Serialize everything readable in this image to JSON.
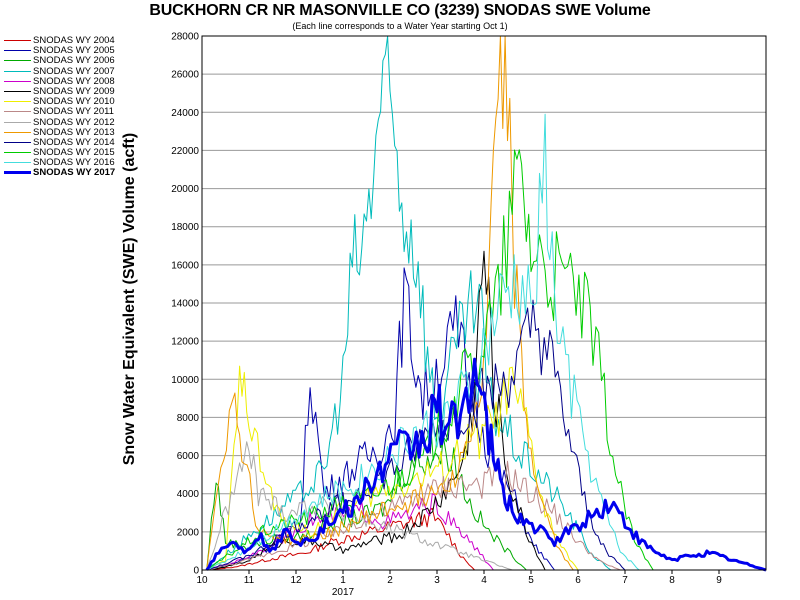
{
  "chart_data": {
    "type": "line",
    "title": "BUCKHORN CR NR MASONVILLE CO (3239) SNODAS SWE Volume",
    "subtitle": "(Each line corresponds to a Water Year starting Oct 1)",
    "ylabel": "Snow Water Equivalent (SWE) Volume (acft)",
    "xlabel": "",
    "x_tick_labels": [
      "10",
      "11",
      "12",
      "1",
      "2",
      "3",
      "4",
      "5",
      "6",
      "7",
      "8",
      "9"
    ],
    "x_year_label": "2017",
    "ylim": [
      0,
      28000
    ],
    "y_ticks": [
      0,
      2000,
      4000,
      6000,
      8000,
      10000,
      12000,
      14000,
      16000,
      18000,
      20000,
      22000,
      24000,
      26000,
      28000
    ],
    "grid": "horizontal",
    "legend_position": "top-left",
    "series": [
      {
        "name": "SNODAS WY 2004",
        "color": "#cc0000",
        "width": 1,
        "points": [
          [
            0.2,
            0
          ],
          [
            0.8,
            200
          ],
          [
            1.5,
            600
          ],
          [
            2.2,
            900
          ],
          [
            2.8,
            1500
          ],
          [
            3.3,
            1800
          ],
          [
            3.9,
            2200
          ],
          [
            4.4,
            2500
          ],
          [
            4.9,
            2800
          ],
          [
            5.2,
            2000
          ],
          [
            5.5,
            800
          ],
          [
            5.8,
            0
          ]
        ]
      },
      {
        "name": "SNODAS WY 2005",
        "color": "#0000aa",
        "width": 1,
        "points": [
          [
            0.1,
            0
          ],
          [
            0.6,
            300
          ],
          [
            1.2,
            800
          ],
          [
            2.1,
            2500
          ],
          [
            2.3,
            10500
          ],
          [
            2.6,
            4000
          ],
          [
            3.3,
            5500
          ],
          [
            3.8,
            6500
          ],
          [
            4.1,
            8000
          ],
          [
            4.3,
            14500
          ],
          [
            4.5,
            11500
          ],
          [
            4.7,
            9000
          ],
          [
            5.1,
            11000
          ],
          [
            5.4,
            12500
          ],
          [
            5.8,
            9000
          ],
          [
            6.2,
            5500
          ],
          [
            6.6,
            4000
          ],
          [
            7.0,
            1500
          ],
          [
            7.5,
            0
          ]
        ]
      },
      {
        "name": "SNODAS WY 2006",
        "color": "#00aa00",
        "width": 1,
        "points": [
          [
            0.1,
            0
          ],
          [
            0.3,
            5000
          ],
          [
            0.5,
            1500
          ],
          [
            1.0,
            1200
          ],
          [
            1.6,
            1700
          ],
          [
            2.2,
            1800
          ],
          [
            2.8,
            2500
          ],
          [
            3.4,
            2800
          ],
          [
            3.9,
            3300
          ],
          [
            4.3,
            5200
          ],
          [
            4.8,
            6000
          ],
          [
            5.3,
            6200
          ],
          [
            5.7,
            3500
          ],
          [
            6.1,
            2000
          ],
          [
            6.5,
            1000
          ],
          [
            6.9,
            0
          ]
        ]
      },
      {
        "name": "SNODAS WY 2007",
        "color": "#00bbbb",
        "width": 1,
        "points": [
          [
            0.1,
            0
          ],
          [
            0.5,
            800
          ],
          [
            1.1,
            2000
          ],
          [
            1.6,
            3000
          ],
          [
            2.1,
            4000
          ],
          [
            2.6,
            5200
          ],
          [
            3.0,
            10000
          ],
          [
            3.2,
            16000
          ],
          [
            3.4,
            16500
          ],
          [
            3.6,
            20000
          ],
          [
            3.8,
            24800
          ],
          [
            4.0,
            24000
          ],
          [
            4.2,
            20000
          ],
          [
            4.4,
            18000
          ],
          [
            4.6,
            16500
          ],
          [
            4.8,
            11000
          ],
          [
            5.0,
            8000
          ],
          [
            5.3,
            10500
          ],
          [
            5.6,
            13000
          ],
          [
            5.9,
            14000
          ],
          [
            6.1,
            9000
          ],
          [
            6.3,
            8000
          ],
          [
            6.5,
            7200
          ],
          [
            6.8,
            6000
          ],
          [
            7.1,
            5200
          ],
          [
            7.5,
            4000
          ],
          [
            7.9,
            2500
          ],
          [
            8.3,
            800
          ],
          [
            8.7,
            0
          ]
        ]
      },
      {
        "name": "SNODAS WY 2008",
        "color": "#cc00cc",
        "width": 1,
        "points": [
          [
            0.1,
            0
          ],
          [
            0.8,
            500
          ],
          [
            1.6,
            1500
          ],
          [
            2.3,
            2600
          ],
          [
            2.9,
            2800
          ],
          [
            3.4,
            3100
          ],
          [
            3.9,
            2500
          ],
          [
            4.4,
            2900
          ],
          [
            4.9,
            3500
          ],
          [
            5.3,
            2500
          ],
          [
            5.8,
            1200
          ],
          [
            6.2,
            0
          ]
        ]
      },
      {
        "name": "SNODAS WY 2009",
        "color": "#000000",
        "width": 1,
        "points": [
          [
            0.2,
            0
          ],
          [
            0.9,
            400
          ],
          [
            1.7,
            1500
          ],
          [
            2.4,
            1500
          ],
          [
            3.0,
            1000
          ],
          [
            3.6,
            1500
          ],
          [
            4.2,
            1800
          ],
          [
            4.8,
            3000
          ],
          [
            5.3,
            4500
          ],
          [
            5.6,
            6000
          ],
          [
            5.8,
            9500
          ],
          [
            6.0,
            17000
          ],
          [
            6.2,
            10000
          ],
          [
            6.5,
            5000
          ],
          [
            6.9,
            2000
          ],
          [
            7.3,
            0
          ]
        ]
      },
      {
        "name": "SNODAS WY 2010",
        "color": "#eeee00",
        "width": 1,
        "points": [
          [
            0.1,
            0
          ],
          [
            0.5,
            500
          ],
          [
            0.8,
            9500
          ],
          [
            0.9,
            12000
          ],
          [
            1.0,
            8000
          ],
          [
            1.3,
            5000
          ],
          [
            1.7,
            2500
          ],
          [
            2.3,
            2000
          ],
          [
            3.1,
            3300
          ],
          [
            3.7,
            4000
          ],
          [
            4.3,
            4500
          ],
          [
            4.8,
            5000
          ],
          [
            5.2,
            5500
          ],
          [
            5.6,
            6500
          ],
          [
            5.9,
            7000
          ],
          [
            6.2,
            7800
          ],
          [
            6.6,
            9500
          ],
          [
            6.9,
            7500
          ],
          [
            7.3,
            3000
          ],
          [
            7.7,
            1000
          ],
          [
            8.0,
            0
          ]
        ]
      },
      {
        "name": "SNODAS WY 2011",
        "color": "#bb8888",
        "width": 1,
        "points": [
          [
            0.1,
            0
          ],
          [
            0.8,
            400
          ],
          [
            1.6,
            1000
          ],
          [
            2.3,
            1500
          ],
          [
            2.9,
            2000
          ],
          [
            3.5,
            2800
          ],
          [
            4.1,
            3300
          ],
          [
            4.7,
            4000
          ],
          [
            5.3,
            4500
          ],
          [
            5.9,
            4500
          ],
          [
            6.5,
            5000
          ],
          [
            7.0,
            4000
          ],
          [
            7.5,
            3000
          ],
          [
            8.0,
            1500
          ],
          [
            8.5,
            400
          ],
          [
            8.9,
            0
          ]
        ]
      },
      {
        "name": "SNODAS WY 2012",
        "color": "#aaaaaa",
        "width": 1,
        "points": [
          [
            0.1,
            0
          ],
          [
            0.5,
            3000
          ],
          [
            0.8,
            5000
          ],
          [
            1.0,
            6500
          ],
          [
            1.2,
            4000
          ],
          [
            1.8,
            3000
          ],
          [
            2.4,
            3500
          ],
          [
            3.0,
            3000
          ],
          [
            3.6,
            2500
          ],
          [
            4.2,
            2000
          ],
          [
            4.8,
            1500
          ],
          [
            5.4,
            1000
          ],
          [
            6.0,
            500
          ],
          [
            6.6,
            0
          ]
        ]
      },
      {
        "name": "SNODAS WY 2013",
        "color": "#ee9900",
        "width": 1,
        "points": [
          [
            0.1,
            0
          ],
          [
            0.4,
            6000
          ],
          [
            0.7,
            9000
          ],
          [
            0.9,
            6000
          ],
          [
            1.2,
            2000
          ],
          [
            2.0,
            1500
          ],
          [
            2.8,
            2000
          ],
          [
            3.5,
            2800
          ],
          [
            4.1,
            3300
          ],
          [
            4.6,
            3800
          ],
          [
            5.1,
            4500
          ],
          [
            5.5,
            5500
          ],
          [
            6.0,
            10000
          ],
          [
            6.2,
            20000
          ],
          [
            6.4,
            28000
          ],
          [
            6.5,
            25000
          ],
          [
            6.6,
            18000
          ],
          [
            6.8,
            10000
          ],
          [
            7.0,
            6000
          ],
          [
            7.3,
            3000
          ],
          [
            7.6,
            1000
          ],
          [
            7.9,
            0
          ]
        ]
      },
      {
        "name": "SNODAS WY 2014",
        "color": "#000088",
        "width": 1,
        "points": [
          [
            0.1,
            0
          ],
          [
            0.6,
            400
          ],
          [
            1.2,
            1000
          ],
          [
            1.8,
            2000
          ],
          [
            2.4,
            2800
          ],
          [
            3.0,
            3500
          ],
          [
            3.6,
            4500
          ],
          [
            4.2,
            5500
          ],
          [
            4.8,
            7000
          ],
          [
            5.4,
            8000
          ],
          [
            5.9,
            9000
          ],
          [
            6.3,
            9500
          ],
          [
            6.7,
            10500
          ],
          [
            7.1,
            13000
          ],
          [
            7.4,
            11000
          ],
          [
            7.8,
            7000
          ],
          [
            8.2,
            3000
          ],
          [
            8.6,
            1000
          ],
          [
            9.0,
            0
          ]
        ]
      },
      {
        "name": "SNODAS WY 2015",
        "color": "#00cc00",
        "width": 1,
        "points": [
          [
            0.1,
            0
          ],
          [
            0.7,
            1000
          ],
          [
            1.3,
            2000
          ],
          [
            1.9,
            2500
          ],
          [
            2.5,
            3000
          ],
          [
            3.1,
            3500
          ],
          [
            3.7,
            4000
          ],
          [
            4.2,
            5000
          ],
          [
            4.7,
            5800
          ],
          [
            5.2,
            8000
          ],
          [
            5.6,
            10000
          ],
          [
            6.0,
            12000
          ],
          [
            6.3,
            14000
          ],
          [
            6.6,
            19000
          ],
          [
            6.8,
            20800
          ],
          [
            7.0,
            17000
          ],
          [
            7.3,
            16000
          ],
          [
            7.6,
            15000
          ],
          [
            7.9,
            15000
          ],
          [
            8.2,
            13000
          ],
          [
            8.5,
            10000
          ],
          [
            8.8,
            5000
          ],
          [
            9.2,
            1500
          ],
          [
            9.6,
            0
          ]
        ]
      },
      {
        "name": "SNODAS WY 2016",
        "color": "#44dddd",
        "width": 1,
        "points": [
          [
            0.1,
            0
          ],
          [
            0.6,
            600
          ],
          [
            1.2,
            1500
          ],
          [
            1.8,
            2500
          ],
          [
            2.4,
            3500
          ],
          [
            3.0,
            4200
          ],
          [
            3.5,
            5000
          ],
          [
            4.0,
            6000
          ],
          [
            4.5,
            7000
          ],
          [
            5.0,
            7500
          ],
          [
            5.4,
            8500
          ],
          [
            5.8,
            10000
          ],
          [
            6.1,
            12000
          ],
          [
            6.4,
            14000
          ],
          [
            6.7,
            15000
          ],
          [
            7.0,
            13500
          ],
          [
            7.3,
            21000
          ],
          [
            7.5,
            14000
          ],
          [
            7.8,
            10000
          ],
          [
            8.1,
            7000
          ],
          [
            8.5,
            3500
          ],
          [
            8.9,
            1000
          ],
          [
            9.3,
            0
          ]
        ]
      },
      {
        "name": "SNODAS WY 2017",
        "color": "#0000ee",
        "width": 3,
        "points": [
          [
            0.1,
            0
          ],
          [
            0.3,
            800
          ],
          [
            0.6,
            1500
          ],
          [
            0.9,
            1000
          ],
          [
            1.2,
            1800
          ],
          [
            1.5,
            1000
          ],
          [
            1.8,
            2000
          ],
          [
            2.1,
            1500
          ],
          [
            2.4,
            1800
          ],
          [
            2.7,
            2500
          ],
          [
            3.0,
            3000
          ],
          [
            3.3,
            3600
          ],
          [
            3.6,
            4500
          ],
          [
            3.9,
            5500
          ],
          [
            4.2,
            6300
          ],
          [
            4.5,
            6500
          ],
          [
            4.8,
            7000
          ],
          [
            5.0,
            9000
          ],
          [
            5.2,
            7000
          ],
          [
            5.5,
            8500
          ],
          [
            5.8,
            10500
          ],
          [
            6.0,
            8000
          ],
          [
            6.2,
            6000
          ],
          [
            6.4,
            4000
          ],
          [
            6.6,
            3200
          ],
          [
            6.9,
            2500
          ],
          [
            7.2,
            2000
          ],
          [
            7.5,
            1500
          ],
          [
            7.8,
            2000
          ],
          [
            8.1,
            2500
          ],
          [
            8.4,
            3000
          ],
          [
            8.7,
            3500
          ],
          [
            9.0,
            2500
          ],
          [
            9.3,
            1500
          ],
          [
            9.6,
            1000
          ],
          [
            10.0,
            500
          ],
          [
            10.4,
            800
          ],
          [
            10.8,
            900
          ],
          [
            11.2,
            600
          ],
          [
            11.6,
            300
          ],
          [
            12.0,
            0
          ]
        ]
      }
    ]
  }
}
